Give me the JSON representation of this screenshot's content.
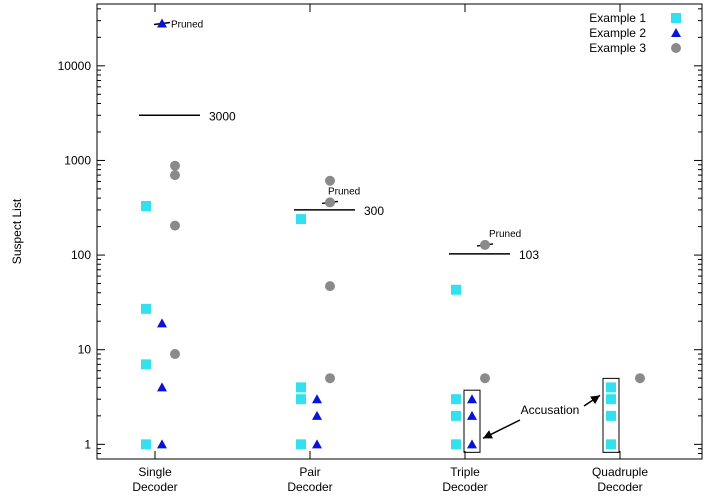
{
  "chart_data": {
    "type": "scatter",
    "title": "",
    "xlabel": "",
    "ylabel": "Suspect List",
    "yscale": "log",
    "ylim": [
      0.7,
      45000
    ],
    "yticks": [
      {
        "value": 1,
        "label": "1"
      },
      {
        "value": 10,
        "label": "10"
      },
      {
        "value": 100,
        "label": "100"
      },
      {
        "value": 1000,
        "label": "1000"
      },
      {
        "value": 10000,
        "label": "10000"
      }
    ],
    "categories": [
      {
        "line1": "Single",
        "line2": "Decoder"
      },
      {
        "line1": "Pair",
        "line2": "Decoder"
      },
      {
        "line1": "Triple",
        "line2": "Decoder"
      },
      {
        "line1": "Quadruple",
        "line2": "Decoder"
      }
    ],
    "grid": false,
    "legend_position": "top-right",
    "series": [
      {
        "name": "Example 1",
        "marker": "square",
        "color": "#33e0f0",
        "points": [
          {
            "category": 0,
            "y": 330
          },
          {
            "category": 0,
            "y": 27
          },
          {
            "category": 0,
            "y": 7
          },
          {
            "category": 0,
            "y": 1
          },
          {
            "category": 1,
            "y": 240
          },
          {
            "category": 1,
            "y": 4
          },
          {
            "category": 1,
            "y": 3
          },
          {
            "category": 1,
            "y": 1
          },
          {
            "category": 2,
            "y": 43
          },
          {
            "category": 2,
            "y": 3
          },
          {
            "category": 2,
            "y": 2
          },
          {
            "category": 2,
            "y": 1
          },
          {
            "category": 3,
            "y": 4
          },
          {
            "category": 3,
            "y": 3
          },
          {
            "category": 3,
            "y": 2
          },
          {
            "category": 3,
            "y": 1
          }
        ]
      },
      {
        "name": "Example 2",
        "marker": "triangle",
        "color": "#0a14d8",
        "points": [
          {
            "category": 0,
            "y": 28000
          },
          {
            "category": 0,
            "y": 19
          },
          {
            "category": 0,
            "y": 4
          },
          {
            "category": 0,
            "y": 1
          },
          {
            "category": 1,
            "y": 3
          },
          {
            "category": 1,
            "y": 2
          },
          {
            "category": 1,
            "y": 1
          },
          {
            "category": 2,
            "y": 3
          },
          {
            "category": 2,
            "y": 2
          },
          {
            "category": 2,
            "y": 1
          }
        ]
      },
      {
        "name": "Example 3",
        "marker": "circle",
        "color": "#8a8a8a",
        "points": [
          {
            "category": 0,
            "y": 880
          },
          {
            "category": 0,
            "y": 700
          },
          {
            "category": 0,
            "y": 205
          },
          {
            "category": 0,
            "y": 9
          },
          {
            "category": 1,
            "y": 610
          },
          {
            "category": 1,
            "y": 360
          },
          {
            "category": 1,
            "y": 47
          },
          {
            "category": 1,
            "y": 5
          },
          {
            "category": 2,
            "y": 128
          },
          {
            "category": 2,
            "y": 5
          },
          {
            "category": 3,
            "y": 5
          }
        ]
      }
    ],
    "thresholds": [
      {
        "category": 0,
        "value": 3000,
        "label": "3000"
      },
      {
        "category": 1,
        "value": 300,
        "label": "300"
      },
      {
        "category": 2,
        "value": 103,
        "label": "103"
      }
    ],
    "pruned": [
      {
        "category": 0,
        "series": 1,
        "y": 28000,
        "label": "Pruned"
      },
      {
        "category": 1,
        "series": 2,
        "y": 360,
        "label": "Pruned"
      },
      {
        "category": 2,
        "series": 2,
        "y": 128,
        "label": "Pruned"
      }
    ],
    "accusation": {
      "label": "Accusation",
      "boxes": [
        {
          "category": 2,
          "series": 1,
          "y_low": 1,
          "y_high": 3
        },
        {
          "category": 3,
          "series": 0,
          "y_low": 1,
          "y_high": 4
        }
      ]
    }
  }
}
